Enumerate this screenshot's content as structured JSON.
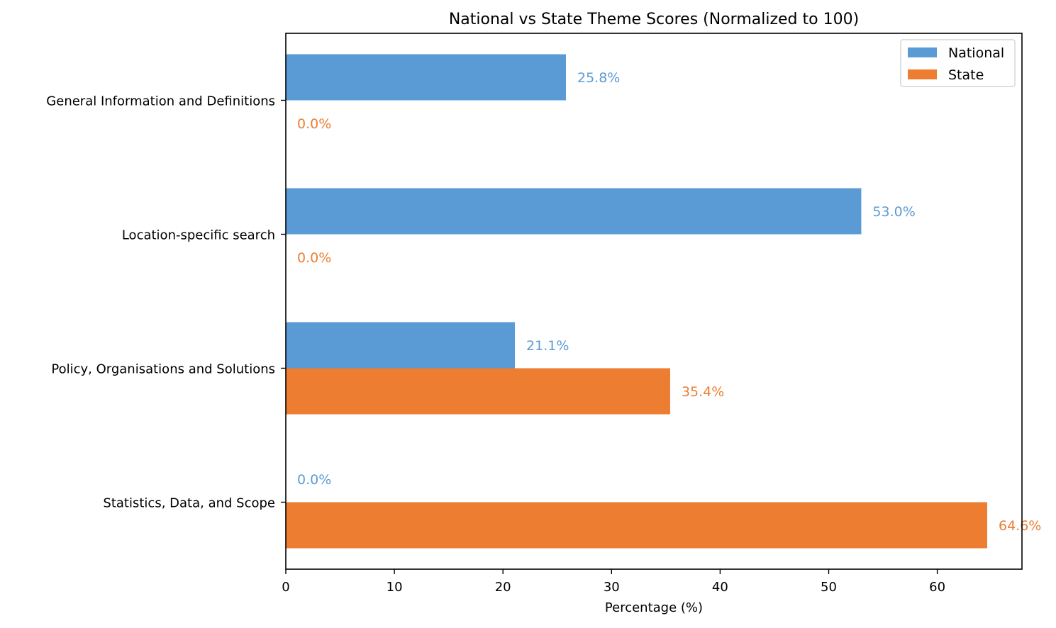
{
  "chart_data": {
    "type": "bar",
    "orientation": "horizontal",
    "title": "National vs State Theme Scores (Normalized to 100)",
    "xlabel": "Percentage (%)",
    "ylabel": "",
    "categories": [
      "General Information and Definitions",
      "Location-specific search",
      "Policy, Organisations and Solutions",
      "Statistics, Data, and Scope"
    ],
    "series": [
      {
        "name": "National",
        "color": "#5b9bd5",
        "values": [
          25.8,
          53.0,
          21.1,
          0.0
        ],
        "value_labels": [
          "25.8%",
          "53.0%",
          "21.1%",
          "0.0%"
        ]
      },
      {
        "name": "State",
        "color": "#ed7d31",
        "values": [
          0.0,
          0.0,
          35.4,
          64.6
        ],
        "value_labels": [
          "0.0%",
          "0.0%",
          "35.4%",
          "64.6%"
        ]
      }
    ],
    "xlim": [
      0,
      67.8
    ],
    "xticks": [
      0,
      10,
      20,
      30,
      40,
      50,
      60
    ],
    "xtick_labels": [
      "0",
      "10",
      "20",
      "30",
      "40",
      "50",
      "60"
    ],
    "grid": false,
    "legend": "top-right"
  }
}
